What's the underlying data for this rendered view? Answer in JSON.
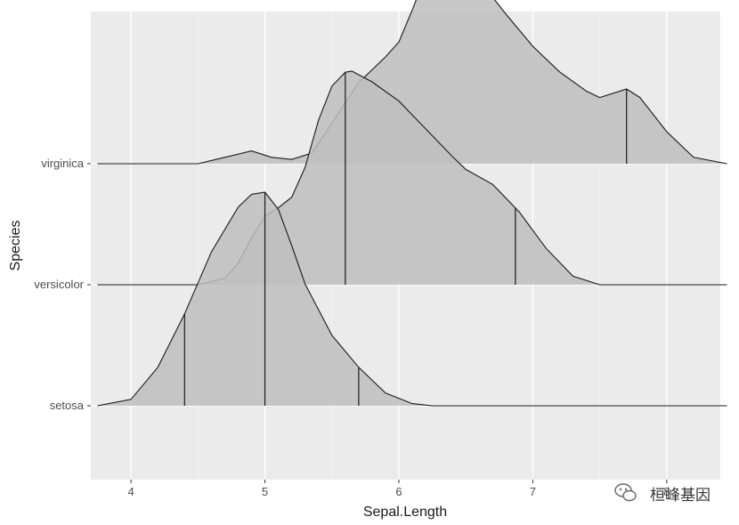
{
  "chart_data": {
    "type": "area",
    "subtype": "ridgeline-density",
    "title": "",
    "xlabel": "Sepal.Length",
    "ylabel": "Species",
    "xlim": [
      3.7,
      8.4
    ],
    "x_ticks": [
      4,
      5,
      6,
      7,
      8
    ],
    "categories": [
      "setosa",
      "versicolor",
      "virginica"
    ],
    "background": "#ebebeb",
    "grid": true,
    "fill_color": "#bebebe",
    "fill_opacity": 0.85,
    "line_color": "#1a1a1a",
    "series": [
      {
        "name": "setosa",
        "quantile_lines": [
          4.4,
          5.0,
          5.7
        ],
        "density": [
          [
            3.75,
            0.0
          ],
          [
            4.0,
            0.03
          ],
          [
            4.2,
            0.18
          ],
          [
            4.4,
            0.43
          ],
          [
            4.6,
            0.72
          ],
          [
            4.8,
            0.93
          ],
          [
            4.9,
            0.99
          ],
          [
            5.0,
            1.0
          ],
          [
            5.1,
            0.92
          ],
          [
            5.2,
            0.75
          ],
          [
            5.3,
            0.57
          ],
          [
            5.5,
            0.33
          ],
          [
            5.7,
            0.18
          ],
          [
            5.9,
            0.06
          ],
          [
            6.1,
            0.01
          ],
          [
            6.25,
            0.0
          ],
          [
            8.45,
            0.0
          ]
        ]
      },
      {
        "name": "versicolor",
        "quantile_lines": [
          5.0,
          5.6,
          6.87
        ],
        "density": [
          [
            3.75,
            0.0
          ],
          [
            4.5,
            0.0
          ],
          [
            4.7,
            0.03
          ],
          [
            4.8,
            0.1
          ],
          [
            4.9,
            0.22
          ],
          [
            5.0,
            0.32
          ],
          [
            5.1,
            0.36
          ],
          [
            5.2,
            0.41
          ],
          [
            5.3,
            0.55
          ],
          [
            5.4,
            0.77
          ],
          [
            5.5,
            0.93
          ],
          [
            5.6,
            0.995
          ],
          [
            5.65,
            1.0
          ],
          [
            5.8,
            0.95
          ],
          [
            6.0,
            0.86
          ],
          [
            6.2,
            0.73
          ],
          [
            6.4,
            0.6
          ],
          [
            6.5,
            0.54
          ],
          [
            6.7,
            0.47
          ],
          [
            6.9,
            0.34
          ],
          [
            7.1,
            0.17
          ],
          [
            7.3,
            0.04
          ],
          [
            7.5,
            0.0
          ],
          [
            8.45,
            0.0
          ]
        ]
      },
      {
        "name": "virginica",
        "quantile_lines": [
          5.6,
          7.7
        ],
        "density": [
          [
            3.75,
            0.0
          ],
          [
            4.5,
            0.0
          ],
          [
            4.7,
            0.03
          ],
          [
            4.9,
            0.06
          ],
          [
            5.05,
            0.03
          ],
          [
            5.2,
            0.02
          ],
          [
            5.35,
            0.05
          ],
          [
            5.5,
            0.19
          ],
          [
            5.7,
            0.38
          ],
          [
            5.9,
            0.5
          ],
          [
            6.0,
            0.57
          ],
          [
            6.1,
            0.72
          ],
          [
            6.2,
            0.88
          ],
          [
            6.3,
            0.97
          ],
          [
            6.4,
            0.995
          ],
          [
            6.5,
            0.95
          ],
          [
            6.6,
            0.86
          ],
          [
            6.8,
            0.7
          ],
          [
            7.0,
            0.55
          ],
          [
            7.2,
            0.43
          ],
          [
            7.4,
            0.34
          ],
          [
            7.5,
            0.31
          ],
          [
            7.7,
            0.35
          ],
          [
            7.8,
            0.31
          ],
          [
            8.0,
            0.15
          ],
          [
            8.2,
            0.03
          ],
          [
            8.45,
            0.0
          ]
        ]
      }
    ]
  },
  "watermark": {
    "icon": "wechat-icon",
    "text": "桓峰基因"
  }
}
